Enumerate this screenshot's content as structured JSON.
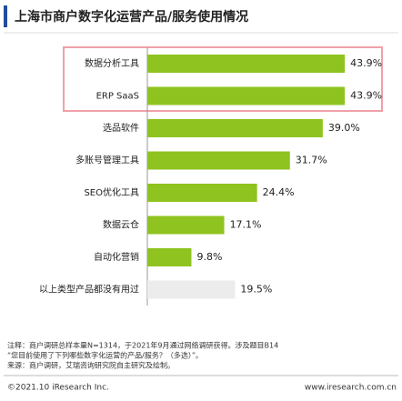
{
  "chart_data": {
    "type": "hbar",
    "title": "上海市商户数字化运营产品/服务使用情况",
    "categories": [
      "数据分析工具",
      "ERP SaaS",
      "选品软件",
      "多账号管理工具",
      "SEO优化工具",
      "数据云仓",
      "自动化营销",
      "以上类型产品都没有用过"
    ],
    "values": [
      43.9,
      43.9,
      39.0,
      31.7,
      24.4,
      17.1,
      9.8,
      19.5
    ],
    "value_labels": [
      "43.9%",
      "43.9%",
      "39.0%",
      "31.7%",
      "24.4%",
      "17.1%",
      "9.8%",
      "19.5%"
    ],
    "colors": [
      "#8fc31f",
      "#8fc31f",
      "#8fc31f",
      "#8fc31f",
      "#8fc31f",
      "#8fc31f",
      "#8fc31f",
      "#ececec"
    ],
    "xlim": [
      0,
      55
    ],
    "notes": [
      "注释：商户调研总样本量N=1314，于2021年9月通过网络调研获得。涉及题目B14",
      "“您目前使用了下列哪些数字化运营的产品/服务？（多选）”。",
      "来源：商户调研，艾瑞咨询研究院自主研究及绘制。"
    ],
    "footer_left": "©2021.10 iResearch Inc.",
    "footer_right": "www.iresearch.com.cn"
  }
}
